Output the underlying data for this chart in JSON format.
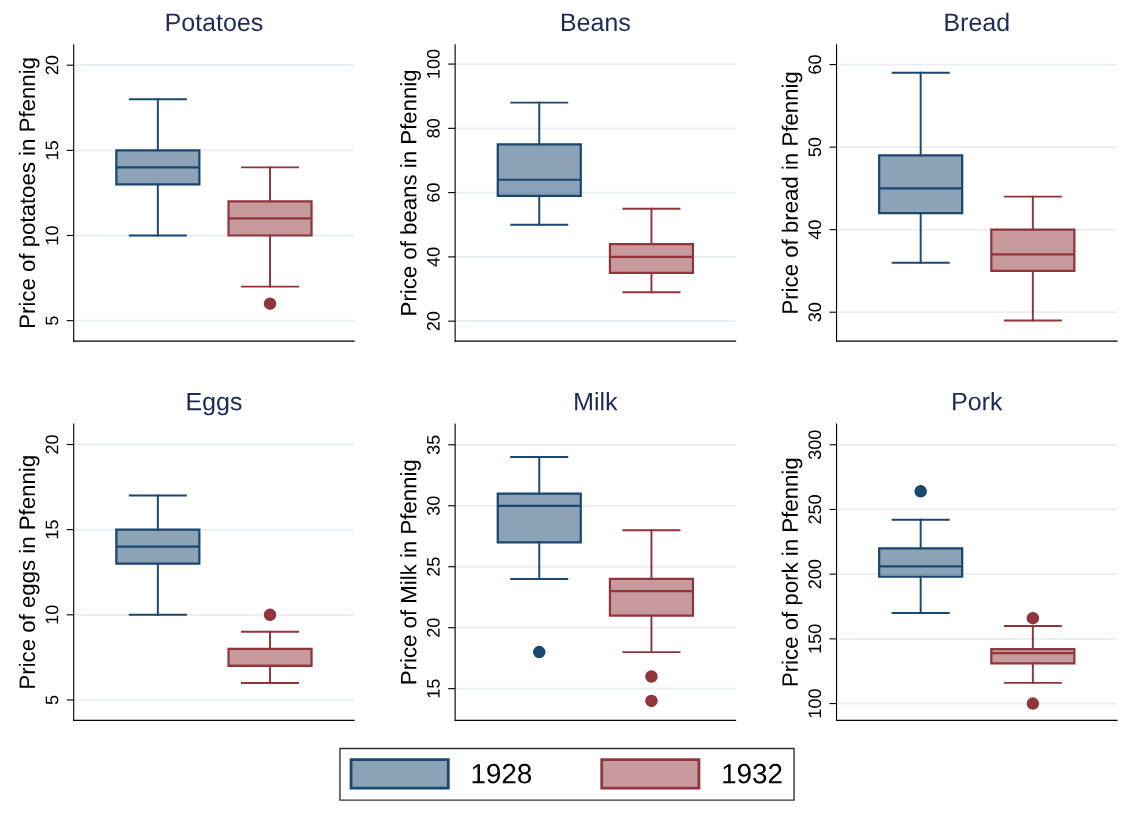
{
  "chart_data": [
    {
      "type": "box",
      "title": "Potatoes",
      "ylabel": "Price of potatoes in Pfennig",
      "categories": [
        null
      ],
      "ylim": [
        3.8,
        21.2
      ],
      "yticks": [
        5,
        10,
        15,
        20
      ],
      "grid": "y",
      "marker": "circle",
      "legend": "bottom",
      "series": [
        {
          "name": "1928",
          "color": "#1a476f",
          "boxes": [
            {
              "low": 10,
              "q1": 13,
              "median": 14,
              "q3": 15,
              "high": 18
            }
          ]
        },
        {
          "name": "1932",
          "color": "#90353b",
          "boxes": [
            {
              "low": 7,
              "q1": 10,
              "median": 11,
              "q3": 12,
              "high": 14,
              "outliers": [
                6
              ]
            }
          ]
        }
      ]
    },
    {
      "type": "box",
      "title": "Beans",
      "ylabel": "Price of beans in Pfennig",
      "categories": [
        null
      ],
      "ylim": [
        13.8,
        106
      ],
      "yticks": [
        20,
        40,
        60,
        80,
        100
      ],
      "grid": "y",
      "marker": "circle",
      "legend": "bottom",
      "series": [
        {
          "name": "1928",
          "color": "#1a476f",
          "boxes": [
            {
              "low": 50,
              "q1": 59,
              "median": 64,
              "q3": 75,
              "high": 88
            }
          ]
        },
        {
          "name": "1932",
          "color": "#90353b",
          "boxes": [
            {
              "low": 29,
              "q1": 35,
              "median": 40,
              "q3": 44,
              "high": 55
            }
          ]
        }
      ]
    },
    {
      "type": "box",
      "title": "Bread",
      "ylabel": "Price of bread in Pfennig",
      "categories": [
        null
      ],
      "ylim": [
        26.5,
        62.4
      ],
      "yticks": [
        30,
        40,
        50,
        60
      ],
      "grid": "y",
      "marker": "circle",
      "legend": "bottom",
      "series": [
        {
          "name": "1928",
          "color": "#1a476f",
          "boxes": [
            {
              "low": 36,
              "q1": 42,
              "median": 45,
              "q3": 49,
              "high": 59
            }
          ]
        },
        {
          "name": "1932",
          "color": "#90353b",
          "boxes": [
            {
              "low": 29,
              "q1": 35,
              "median": 37,
              "q3": 40,
              "high": 44
            }
          ]
        }
      ]
    },
    {
      "type": "box",
      "title": "Eggs",
      "ylabel": "Price of eggs in Pfennig",
      "categories": [
        null
      ],
      "ylim": [
        3.8,
        21.2
      ],
      "yticks": [
        5,
        10,
        15,
        20
      ],
      "grid": "y",
      "marker": "circle",
      "legend": "bottom",
      "series": [
        {
          "name": "1928",
          "color": "#1a476f",
          "boxes": [
            {
              "low": 10,
              "q1": 13,
              "median": 14,
              "q3": 15,
              "high": 17
            }
          ]
        },
        {
          "name": "1932",
          "color": "#90353b",
          "boxes": [
            {
              "low": 6,
              "q1": 7,
              "median": 7,
              "q3": 8,
              "high": 9,
              "outliers": [
                10
              ]
            }
          ]
        }
      ]
    },
    {
      "type": "box",
      "title": "Milk",
      "ylabel": "Price of Milk in Pfennig",
      "categories": [
        null
      ],
      "ylim": [
        12.4,
        36.7
      ],
      "yticks": [
        15,
        20,
        25,
        30,
        35
      ],
      "grid": "y",
      "marker": "circle",
      "legend": "bottom",
      "series": [
        {
          "name": "1928",
          "color": "#1a476f",
          "boxes": [
            {
              "low": 24,
              "q1": 27,
              "median": 30,
              "q3": 31,
              "high": 34,
              "outliers": [
                18
              ]
            }
          ]
        },
        {
          "name": "1932",
          "color": "#90353b",
          "boxes": [
            {
              "low": 18,
              "q1": 21,
              "median": 23,
              "q3": 24,
              "high": 28,
              "outliers": [
                16,
                14
              ]
            }
          ]
        }
      ]
    },
    {
      "type": "box",
      "title": "Pork",
      "ylabel": "Price of pork in Pfennig",
      "categories": [
        null
      ],
      "ylim": [
        87,
        316
      ],
      "yticks": [
        100,
        150,
        200,
        250,
        300
      ],
      "grid": "y",
      "marker": "circle",
      "legend": "bottom",
      "series": [
        {
          "name": "1928",
          "color": "#1a476f",
          "boxes": [
            {
              "low": 170,
              "q1": 198,
              "median": 206,
              "q3": 220,
              "high": 242,
              "outliers": [
                264
              ]
            }
          ]
        },
        {
          "name": "1932",
          "color": "#90353b",
          "boxes": [
            {
              "low": 116,
              "q1": 131,
              "median": 139,
              "q3": 142,
              "high": 160,
              "outliers": [
                166,
                100
              ]
            }
          ]
        }
      ]
    }
  ]
}
